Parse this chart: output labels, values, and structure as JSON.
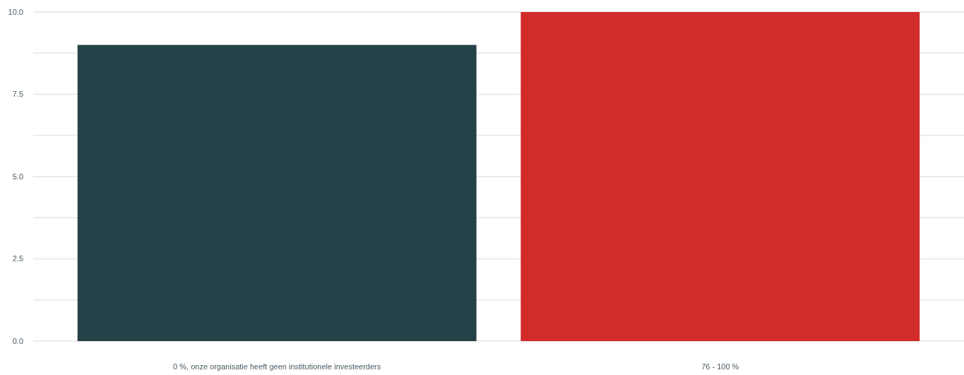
{
  "chart_data": {
    "type": "bar",
    "categories": [
      "0 %, onze organisatie heeft geen institutionele investeerders",
      "76 - 100 %"
    ],
    "values": [
      9,
      10
    ],
    "colors": [
      "#264249",
      "#d12b2a"
    ],
    "ylim": [
      0,
      10
    ],
    "yticks": [
      {
        "value": 0,
        "label": "0.0"
      },
      {
        "value": 1.25,
        "label": null
      },
      {
        "value": 2.5,
        "label": "2.5"
      },
      {
        "value": 3.75,
        "label": null
      },
      {
        "value": 5,
        "label": "5.0"
      },
      {
        "value": 6.25,
        "label": null
      },
      {
        "value": 7.5,
        "label": "7.5"
      },
      {
        "value": 8.75,
        "label": null
      },
      {
        "value": 10,
        "label": "10.0"
      }
    ],
    "grid": true
  }
}
